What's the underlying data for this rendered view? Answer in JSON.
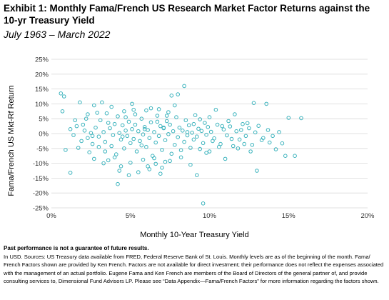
{
  "header": {
    "title": "Exhibit 1: Monthly Fama/French US Research Market Factor Returns against the 10-yr Treasury Yield",
    "subtitle": "July 1963 – March 2022"
  },
  "chart_data": {
    "type": "scatter",
    "title": "Exhibit 1: Monthly Fama/French US Research Market Factor Returns against the 10-yr Treasury Yield",
    "subtitle": "July 1963 – March 2022",
    "xlabel": "Monthly 10-Year Treasury Yield",
    "ylabel": "Fama/French US Mkt-Rf Return",
    "xlim": [
      0,
      20
    ],
    "ylim": [
      -25,
      25
    ],
    "x_ticks": [
      "0%",
      "5%",
      "10%",
      "15%",
      "20%"
    ],
    "y_ticks": [
      "25%",
      "20%",
      "15%",
      "10%",
      "5%",
      "0%",
      "-5%",
      "-10%",
      "-15%",
      "-20%",
      "-25%"
    ],
    "grid": "horizontal",
    "color": "#3bb3bd",
    "points": [
      [
        0.6,
        13.5
      ],
      [
        0.8,
        12.5
      ],
      [
        0.7,
        7.5
      ],
      [
        1.5,
        4.5
      ],
      [
        1.8,
        10.5
      ],
      [
        0.9,
        -5.5
      ],
      [
        1.2,
        -13.2
      ],
      [
        1.7,
        -4.8
      ],
      [
        2.0,
        3.0
      ],
      [
        2.2,
        5.0
      ],
      [
        2.3,
        -1.5
      ],
      [
        2.4,
        -6.3
      ],
      [
        2.6,
        -0.8
      ],
      [
        2.7,
        9.5
      ],
      [
        2.9,
        7.0
      ],
      [
        3.0,
        -4.5
      ],
      [
        3.2,
        10.5
      ],
      [
        3.4,
        -6.0
      ],
      [
        3.6,
        3.6
      ],
      [
        3.8,
        9.0
      ],
      [
        4.0,
        -8.0
      ],
      [
        4.2,
        -17.0
      ],
      [
        4.3,
        -12.5
      ],
      [
        4.5,
        -1.0
      ],
      [
        4.7,
        5.5
      ],
      [
        4.9,
        -14.0
      ],
      [
        5.1,
        10.0
      ],
      [
        5.3,
        6.5
      ],
      [
        5.5,
        -13.0
      ],
      [
        5.7,
        -4.0
      ],
      [
        5.9,
        1.5
      ],
      [
        6.1,
        -11.0
      ],
      [
        6.3,
        8.5
      ],
      [
        6.5,
        -8.3
      ],
      [
        6.7,
        4.0
      ],
      [
        6.9,
        -13.5
      ],
      [
        7.1,
        2.0
      ],
      [
        7.3,
        6.0
      ],
      [
        7.5,
        -9.2
      ],
      [
        7.6,
        12.8
      ],
      [
        7.8,
        9.5
      ],
      [
        8.0,
        13.2
      ],
      [
        8.2,
        -5.6
      ],
      [
        8.4,
        16.0
      ],
      [
        8.6,
        0.5
      ],
      [
        8.8,
        -10.5
      ],
      [
        9.0,
        3.2
      ],
      [
        9.2,
        -14.0
      ],
      [
        9.4,
        4.8
      ],
      [
        9.6,
        -23.5
      ],
      [
        9.8,
        -6.5
      ],
      [
        10.0,
        5.5
      ],
      [
        10.2,
        -2.5
      ],
      [
        10.4,
        8.0
      ],
      [
        10.6,
        -4.5
      ],
      [
        10.8,
        2.5
      ],
      [
        11.0,
        -8.5
      ],
      [
        11.2,
        4.2
      ],
      [
        11.4,
        -1.8
      ],
      [
        11.6,
        6.5
      ],
      [
        11.8,
        -5.0
      ],
      [
        12.0,
        1.2
      ],
      [
        12.2,
        -3.5
      ],
      [
        12.4,
        3.5
      ],
      [
        12.6,
        -6.0
      ],
      [
        12.8,
        10.3
      ],
      [
        13.0,
        -12.5
      ],
      [
        13.3,
        -2.2
      ],
      [
        13.6,
        10.0
      ],
      [
        13.8,
        -3.0
      ],
      [
        14.2,
        -5.3
      ],
      [
        14.6,
        -3.3
      ],
      [
        14.8,
        -7.5
      ],
      [
        15.0,
        5.3
      ],
      [
        15.4,
        -7.5
      ],
      [
        15.8,
        5.2
      ],
      [
        1.2,
        1.5
      ],
      [
        1.4,
        -0.5
      ],
      [
        1.6,
        2.5
      ],
      [
        1.9,
        -2.5
      ],
      [
        2.1,
        1.0
      ],
      [
        2.3,
        6.5
      ],
      [
        2.5,
        0.2
      ],
      [
        2.6,
        -3.5
      ],
      [
        2.8,
        2.0
      ],
      [
        3.0,
        -1.0
      ],
      [
        3.1,
        4.5
      ],
      [
        3.3,
        0.5
      ],
      [
        3.4,
        -2.8
      ],
      [
        3.5,
        6.8
      ],
      [
        3.7,
        1.8
      ],
      [
        3.8,
        -4.2
      ],
      [
        3.9,
        -0.5
      ],
      [
        4.0,
        3.2
      ],
      [
        4.1,
        -7.0
      ],
      [
        4.2,
        5.8
      ],
      [
        4.3,
        0.2
      ],
      [
        4.4,
        -2.0
      ],
      [
        4.5,
        2.8
      ],
      [
        4.6,
        -5.0
      ],
      [
        4.7,
        1.0
      ],
      [
        4.8,
        -0.8
      ],
      [
        4.9,
        4.0
      ],
      [
        5.0,
        -3.2
      ],
      [
        5.1,
        1.5
      ],
      [
        5.2,
        -1.8
      ],
      [
        5.3,
        3.0
      ],
      [
        5.4,
        -6.0
      ],
      [
        5.5,
        0.8
      ],
      [
        5.6,
        -2.5
      ],
      [
        5.7,
        5.0
      ],
      [
        5.8,
        -0.3
      ],
      [
        5.9,
        2.2
      ],
      [
        6.0,
        -4.5
      ],
      [
        6.1,
        1.2
      ],
      [
        6.2,
        -1.5
      ],
      [
        6.3,
        3.8
      ],
      [
        6.4,
        -7.5
      ],
      [
        6.5,
        0.5
      ],
      [
        6.6,
        -3.0
      ],
      [
        6.7,
        6.0
      ],
      [
        6.8,
        -0.8
      ],
      [
        6.9,
        2.5
      ],
      [
        7.0,
        -5.5
      ],
      [
        7.1,
        1.8
      ],
      [
        7.2,
        -2.2
      ],
      [
        7.3,
        4.2
      ],
      [
        7.4,
        -0.2
      ],
      [
        7.5,
        3.0
      ],
      [
        7.6,
        -6.8
      ],
      [
        7.7,
        0.8
      ],
      [
        7.8,
        -3.8
      ],
      [
        7.9,
        5.5
      ],
      [
        8.0,
        -1.2
      ],
      [
        8.1,
        2.0
      ],
      [
        8.2,
        -8.0
      ],
      [
        8.3,
        1.0
      ],
      [
        8.4,
        -2.8
      ],
      [
        8.5,
        4.5
      ],
      [
        8.6,
        -0.6
      ],
      [
        8.7,
        2.8
      ],
      [
        8.8,
        -4.8
      ],
      [
        8.9,
        0.3
      ],
      [
        9.0,
        -2.0
      ],
      [
        9.1,
        6.2
      ],
      [
        9.2,
        -1.0
      ],
      [
        9.3,
        1.6
      ],
      [
        9.4,
        -5.2
      ],
      [
        9.5,
        0.9
      ],
      [
        9.6,
        -3.2
      ],
      [
        9.7,
        3.6
      ],
      [
        9.8,
        -0.4
      ],
      [
        9.9,
        2.2
      ],
      [
        10.0,
        -6.0
      ],
      [
        10.1,
        0.6
      ],
      [
        10.3,
        -1.6
      ],
      [
        10.5,
        3.0
      ],
      [
        10.7,
        -3.5
      ],
      [
        10.9,
        1.4
      ],
      [
        11.1,
        -0.6
      ],
      [
        11.3,
        2.4
      ],
      [
        11.5,
        -4.2
      ],
      [
        11.7,
        0.8
      ],
      [
        11.9,
        -2.0
      ],
      [
        12.1,
        3.2
      ],
      [
        12.3,
        -0.8
      ],
      [
        12.5,
        1.8
      ],
      [
        12.7,
        -3.8
      ],
      [
        12.9,
        0.4
      ],
      [
        13.1,
        2.6
      ],
      [
        13.4,
        -1.5
      ],
      [
        13.7,
        1.2
      ],
      [
        14.0,
        -0.8
      ],
      [
        14.4,
        0.5
      ],
      [
        4.6,
        7.5
      ],
      [
        5.2,
        8.0
      ],
      [
        6.0,
        7.8
      ],
      [
        6.8,
        8.2
      ],
      [
        7.4,
        7.2
      ],
      [
        3.6,
        -9.0
      ],
      [
        5.0,
        -9.8
      ],
      [
        5.8,
        -8.8
      ],
      [
        6.6,
        -10.2
      ],
      [
        7.2,
        -9.5
      ],
      [
        2.7,
        -8.5
      ],
      [
        3.3,
        -10.0
      ],
      [
        4.4,
        -11.0
      ],
      [
        6.2,
        -12.0
      ],
      [
        7.0,
        -11.5
      ]
    ]
  },
  "footer": {
    "disclaimer": "Past performance is not a guarantee of future results.",
    "notes": "In USD. Sources: US Treasury data available from FRED, Federal Reserve Bank of St. Louis. Monthly levels are as of the beginning of the month. Fama/ French Factors shown are provided by Ken French. Factors are not available for direct investment; their performance does not reflect the expenses associated with the management of an actual portfolio. Eugene Fama and Ken French are members of the Board of Directors of the general partner of, and provide consulting services to, Dimensional Fund Advisors LP. Please see “Data Appendix—Fama/French Factors” for more information regarding the factors shown."
  }
}
